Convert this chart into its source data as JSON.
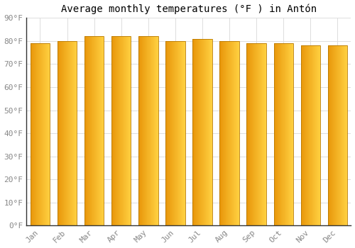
{
  "title": "Average monthly temperatures (°F ) in Antón",
  "months": [
    "Jan",
    "Feb",
    "Mar",
    "Apr",
    "May",
    "Jun",
    "Jul",
    "Aug",
    "Sep",
    "Oct",
    "Nov",
    "Dec"
  ],
  "values": [
    79,
    80,
    82,
    82,
    82,
    80,
    81,
    80,
    79,
    79,
    78,
    78
  ],
  "bar_color_left": "#E8960A",
  "bar_color_right": "#FFD040",
  "bar_edge_color": "#B87800",
  "background_color": "#FFFFFF",
  "grid_color": "#DDDDDD",
  "ylim": [
    0,
    90
  ],
  "yticks": [
    0,
    10,
    20,
    30,
    40,
    50,
    60,
    70,
    80,
    90
  ],
  "ytick_labels": [
    "0°F",
    "10°F",
    "20°F",
    "30°F",
    "40°F",
    "50°F",
    "60°F",
    "70°F",
    "80°F",
    "90°F"
  ],
  "title_fontsize": 10,
  "tick_fontsize": 8,
  "tick_font_color": "#888888",
  "bar_width": 0.72
}
